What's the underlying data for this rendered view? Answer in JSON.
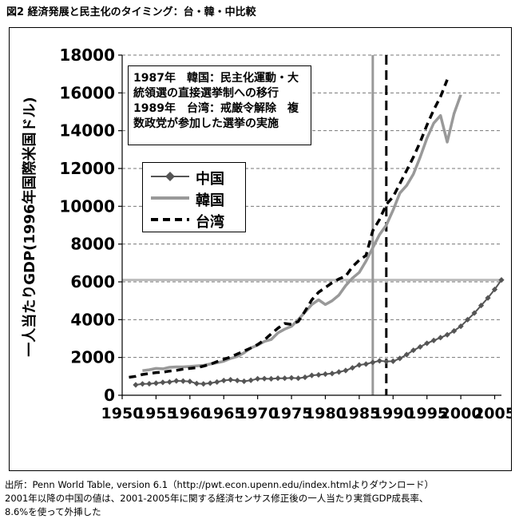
{
  "figure_caption": "図2 経済発展と民主化のタイミング：台・韓・中比較",
  "notes": {
    "source": "出所：Penn World Table, version 6.1（http://pwt.econ.upenn.edu/index.htmlよりダウンロード）",
    "line2": "2001年以降の中国の値は、2001-2005年に関する経済センサス修正後の一人当たり実質GDP成長率、",
    "line3": "8.6%を使って外挿した"
  },
  "annotation": {
    "line1": "1987年　韓国：民主化運動・大",
    "line2": "統領選の直接選挙制への移行",
    "line3": "1989年　台湾：戒厳令解除　複",
    "line4": "数政党が参加した選挙の実施"
  },
  "chart_data": {
    "type": "line",
    "title": "",
    "xlabel": "",
    "ylabel": "一人当たりGDP(1996年国際米国ドル)",
    "xlim": [
      1950,
      2006
    ],
    "ylim": [
      0,
      18000
    ],
    "x_ticks": [
      "1950",
      "1955",
      "1960",
      "1965",
      "1970",
      "1975",
      "1980",
      "1985",
      "1990",
      "1995",
      "2000",
      "2005"
    ],
    "y_ticks": [
      "0",
      "2000",
      "4000",
      "6000",
      "8000",
      "10000",
      "12000",
      "14000",
      "16000",
      "18000"
    ],
    "grid": "horizontal dashed",
    "legend_position": "upper-left",
    "colors": {
      "china": "#555555",
      "korea": "#999999",
      "taiwan": "#000000",
      "refline": "#bbbbbb"
    },
    "reference_lines": {
      "vertical_solid": 1987,
      "vertical_dashed": 1989,
      "horizontal": 6100
    },
    "series": [
      {
        "name": "中国",
        "style": "line-diamond",
        "x": [
          1952,
          1953,
          1954,
          1955,
          1956,
          1957,
          1958,
          1959,
          1960,
          1961,
          1962,
          1963,
          1964,
          1965,
          1966,
          1967,
          1968,
          1969,
          1970,
          1971,
          1972,
          1973,
          1974,
          1975,
          1976,
          1977,
          1978,
          1979,
          1980,
          1981,
          1982,
          1983,
          1984,
          1985,
          1986,
          1987,
          1988,
          1989,
          1990,
          1991,
          1992,
          1993,
          1994,
          1995,
          1996,
          1997,
          1998,
          1999,
          2000,
          2001,
          2002,
          2003,
          2004,
          2005,
          2006
        ],
        "values": [
          550,
          600,
          610,
          640,
          680,
          700,
          760,
          750,
          730,
          620,
          600,
          640,
          700,
          780,
          820,
          780,
          740,
          790,
          870,
          880,
          870,
          900,
          900,
          920,
          900,
          950,
          1050,
          1080,
          1120,
          1150,
          1230,
          1310,
          1450,
          1600,
          1650,
          1740,
          1820,
          1790,
          1800,
          1950,
          2150,
          2380,
          2560,
          2750,
          2900,
          3050,
          3200,
          3400,
          3650,
          4000,
          4350,
          4750,
          5150,
          5600,
          6100
        ]
      },
      {
        "name": "韓国",
        "style": "solid",
        "x": [
          1953,
          1954,
          1955,
          1956,
          1957,
          1958,
          1959,
          1960,
          1961,
          1962,
          1963,
          1964,
          1965,
          1966,
          1967,
          1968,
          1969,
          1970,
          1971,
          1972,
          1973,
          1974,
          1975,
          1976,
          1977,
          1978,
          1979,
          1980,
          1981,
          1982,
          1983,
          1984,
          1985,
          1986,
          1987,
          1988,
          1989,
          1990,
          1991,
          1992,
          1993,
          1994,
          1995,
          1996,
          1997,
          1998,
          1999,
          2000
        ],
        "values": [
          1300,
          1350,
          1420,
          1400,
          1480,
          1500,
          1500,
          1520,
          1550,
          1580,
          1650,
          1720,
          1800,
          1950,
          2050,
          2250,
          2500,
          2650,
          2850,
          2950,
          3300,
          3500,
          3650,
          4000,
          4400,
          4800,
          5050,
          4800,
          5000,
          5300,
          5800,
          6200,
          6500,
          7100,
          7800,
          8500,
          9000,
          9800,
          10700,
          11100,
          11700,
          12600,
          13600,
          14400,
          14800,
          13400,
          14900,
          15900
        ]
      },
      {
        "name": "台湾",
        "style": "dashed",
        "x": [
          1951,
          1952,
          1953,
          1954,
          1955,
          1956,
          1957,
          1958,
          1959,
          1960,
          1961,
          1962,
          1963,
          1964,
          1965,
          1966,
          1967,
          1968,
          1969,
          1970,
          1971,
          1972,
          1973,
          1974,
          1975,
          1976,
          1977,
          1978,
          1979,
          1980,
          1981,
          1982,
          1983,
          1984,
          1985,
          1986,
          1987,
          1988,
          1989,
          1990,
          1991,
          1992,
          1993,
          1994,
          1995,
          1996,
          1997,
          1998
        ],
        "values": [
          950,
          1000,
          1100,
          1150,
          1200,
          1220,
          1280,
          1320,
          1380,
          1420,
          1460,
          1540,
          1640,
          1780,
          1900,
          2020,
          2180,
          2340,
          2500,
          2680,
          2930,
          3250,
          3550,
          3800,
          3750,
          3900,
          4450,
          5050,
          5450,
          5700,
          5950,
          6150,
          6300,
          6800,
          7150,
          7400,
          8700,
          9300,
          10100,
          10500,
          11200,
          11900,
          12600,
          13400,
          14300,
          15100,
          15800,
          16700
        ]
      }
    ]
  }
}
